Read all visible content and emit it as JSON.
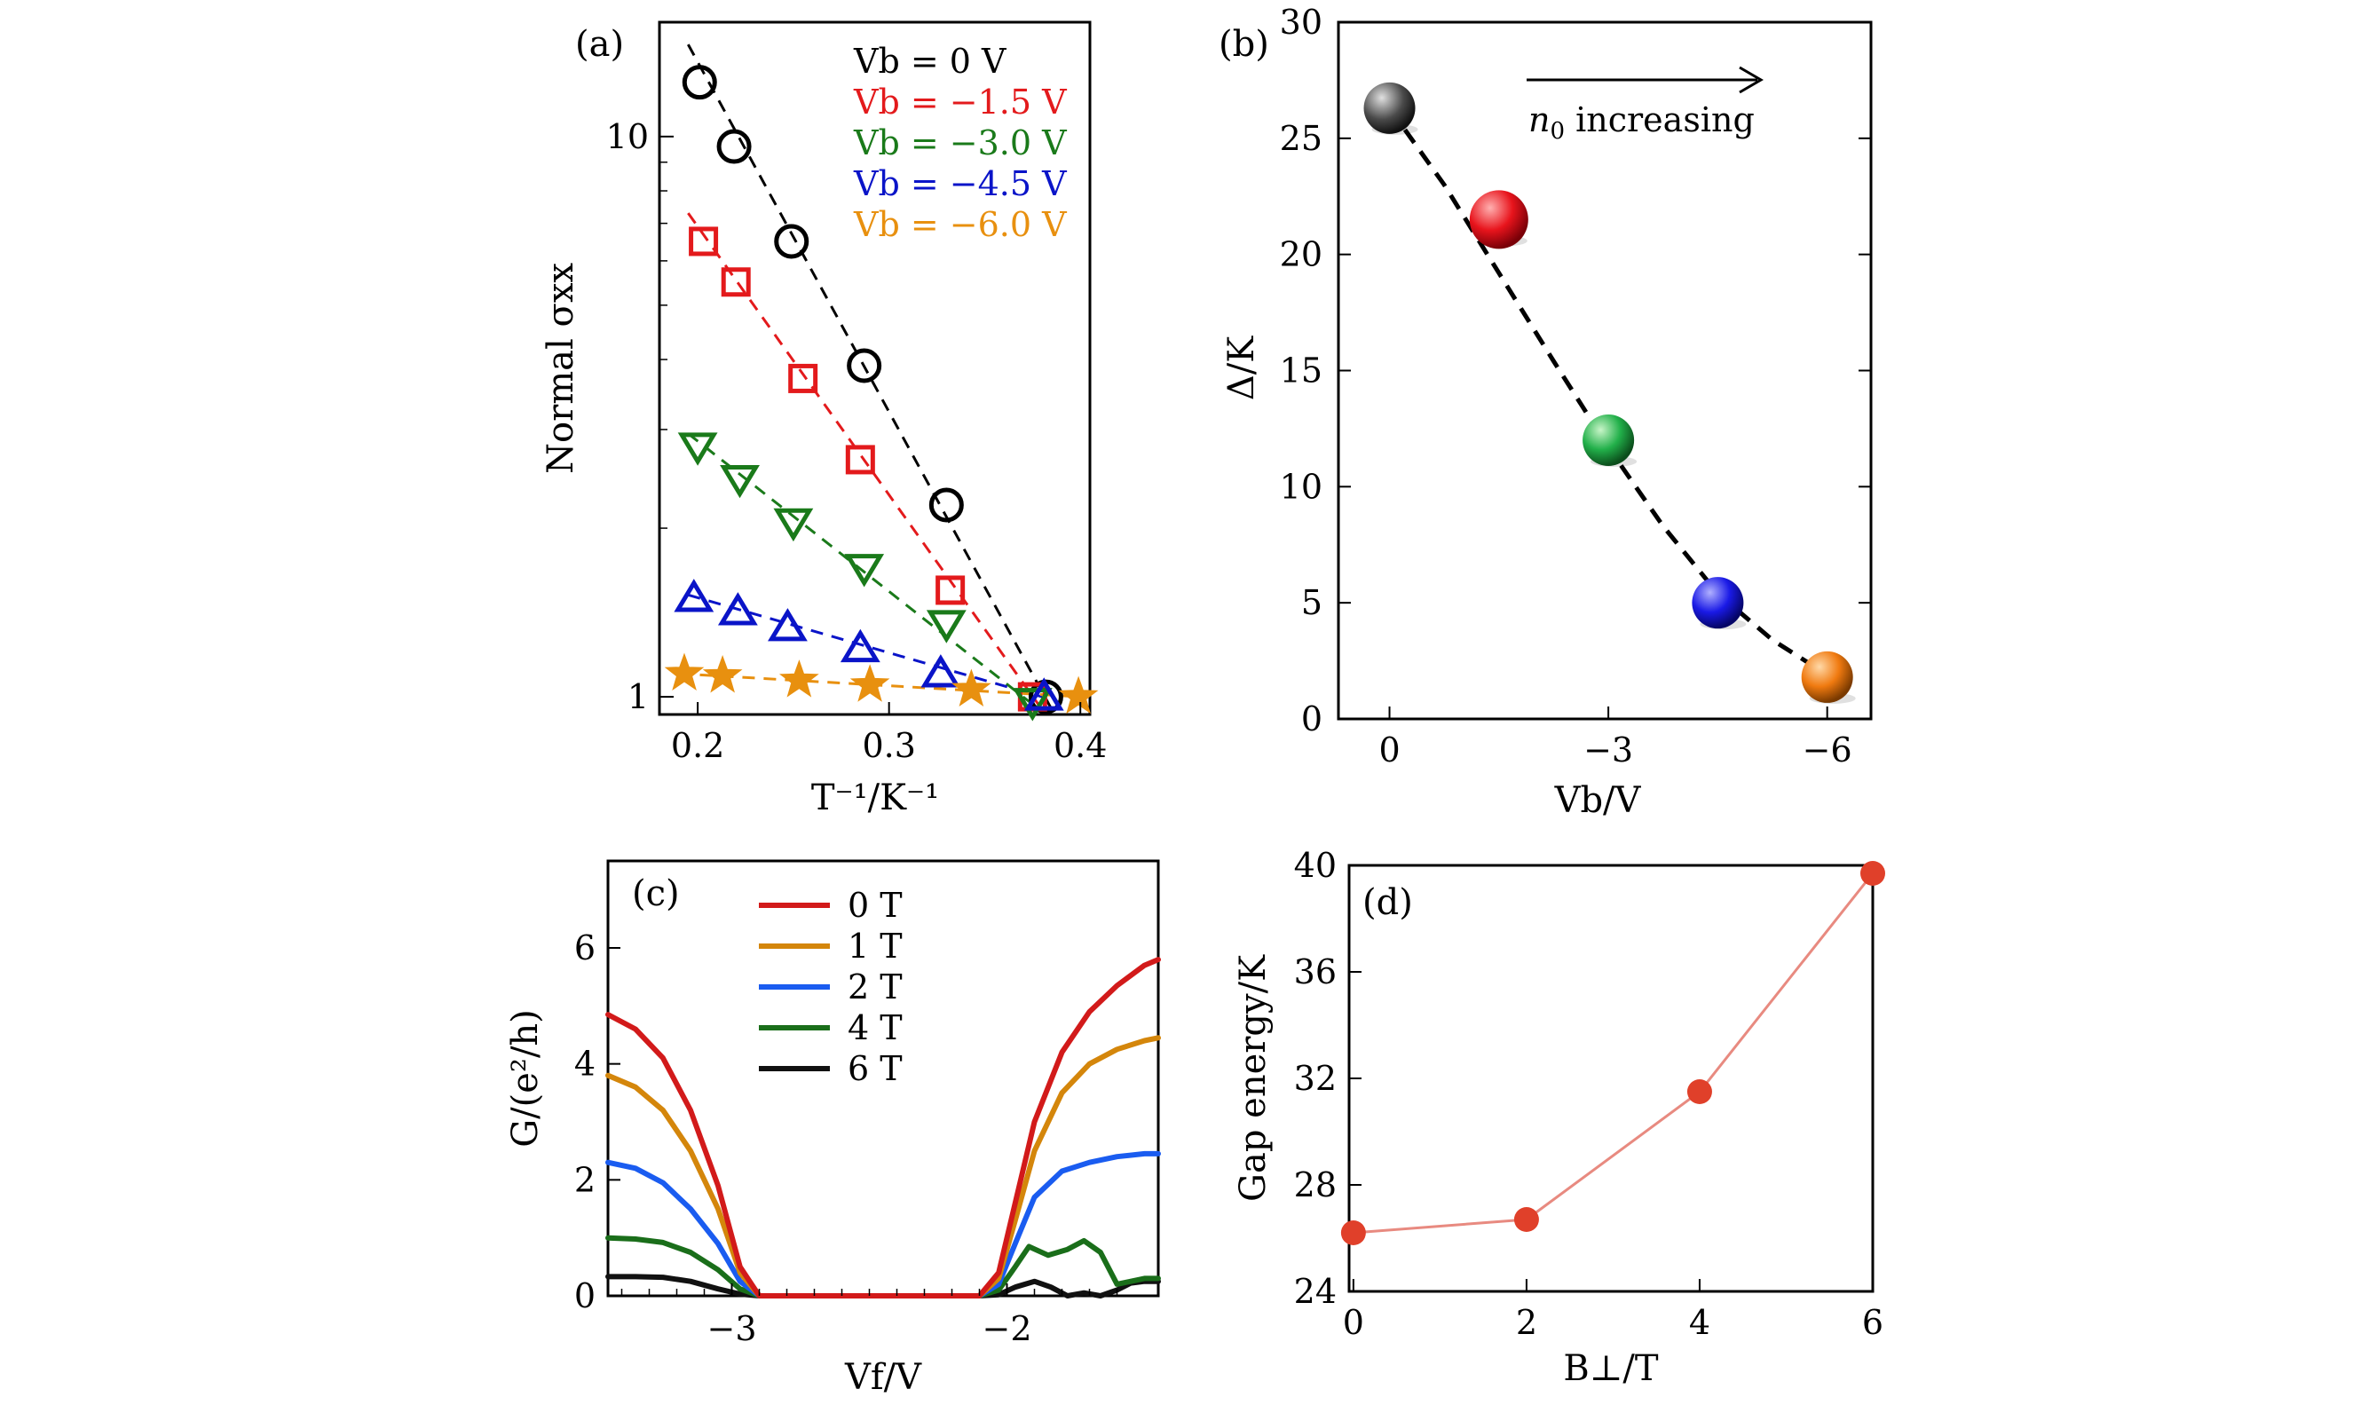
{
  "chart_data": [
    {
      "panel": "(a)",
      "type": "scatter",
      "xlabel": "T⁻¹/K⁻¹",
      "ylabel": "Normal σxx",
      "xscale": "linear",
      "yscale": "log",
      "xlim": [
        0.18,
        0.405
      ],
      "ylim": [
        0.93,
        16
      ],
      "xticks": [
        0.2,
        0.3,
        0.4
      ],
      "xticklabels": [
        "0.2",
        "0.3",
        "0.4"
      ],
      "yticks": [
        1,
        10
      ],
      "yticklabels": [
        "1",
        "10"
      ],
      "legend_position": "top-right",
      "fit_lines": "dashed",
      "series": [
        {
          "name": "Vb = 0 V",
          "color": "#000000",
          "marker": "circle",
          "x": [
            0.201,
            0.219,
            0.249,
            0.287,
            0.33,
            0.382
          ],
          "y": [
            12.5,
            9.6,
            6.5,
            3.9,
            2.2,
            1.0
          ],
          "fit": {
            "x": [
              0.195,
              0.385
            ],
            "y": [
              14.6,
              0.95
            ]
          }
        },
        {
          "name": "Vb = −1.5 V",
          "color": "#e31a1c",
          "marker": "square",
          "x": [
            0.203,
            0.22,
            0.255,
            0.285,
            0.332,
            0.375
          ],
          "y": [
            6.5,
            5.5,
            3.7,
            2.65,
            1.55,
            1.0
          ],
          "fit": {
            "x": [
              0.195,
              0.378
            ],
            "y": [
              7.3,
              0.97
            ]
          }
        },
        {
          "name": "Vb = −3.0 V",
          "color": "#1a7a1a",
          "marker": "triangle-down",
          "x": [
            0.2,
            0.222,
            0.25,
            0.287,
            0.33,
            0.375
          ],
          "y": [
            2.8,
            2.45,
            2.05,
            1.7,
            1.35,
            0.98
          ],
          "fit": {
            "x": [
              0.195,
              0.375
            ],
            "y": [
              2.95,
              0.97
            ]
          }
        },
        {
          "name": "Vb = −4.5 V",
          "color": "#0a14c8",
          "marker": "triangle-up",
          "x": [
            0.198,
            0.221,
            0.247,
            0.285,
            0.327,
            0.381
          ],
          "y": [
            1.5,
            1.42,
            1.33,
            1.22,
            1.1,
            1.0
          ],
          "fit": {
            "x": [
              0.195,
              0.38
            ],
            "y": [
              1.52,
              1.0
            ]
          }
        },
        {
          "name": "Vb = −6.0 V",
          "color": "#e8900f",
          "marker": "star",
          "x": [
            0.193,
            0.213,
            0.253,
            0.29,
            0.343,
            0.399
          ],
          "y": [
            1.1,
            1.09,
            1.07,
            1.05,
            1.03,
            1.0
          ],
          "fit": {
            "x": [
              0.19,
              0.4
            ],
            "y": [
              1.1,
              1.0
            ]
          }
        }
      ]
    },
    {
      "panel": "(b)",
      "type": "scatter",
      "xlabel": "Vb/V",
      "ylabel": "Δ/K",
      "xlim": [
        0.7,
        -6.6
      ],
      "ylim": [
        0,
        30
      ],
      "xticks": [
        0,
        -3,
        -6
      ],
      "xticklabels": [
        "0",
        "−3",
        "−6"
      ],
      "yticks": [
        0,
        5,
        10,
        15,
        20,
        25,
        30
      ],
      "yticklabels": [
        "0",
        "5",
        "10",
        "15",
        "20",
        "25",
        "30"
      ],
      "annotation": "n0 increasing",
      "fit_line": "dashed",
      "points": [
        {
          "x": 0,
          "y": 26.3,
          "color": "#555555"
        },
        {
          "x": -1.5,
          "y": 21.5,
          "color": "#e8141c"
        },
        {
          "x": -3.0,
          "y": 12.0,
          "color": "#22b04a"
        },
        {
          "x": -4.5,
          "y": 5.0,
          "color": "#1a1ae6"
        },
        {
          "x": -6.0,
          "y": 1.8,
          "color": "#f07a10"
        }
      ],
      "fit": {
        "x": [
          0,
          -0.75,
          -1.5,
          -2.25,
          -3.0,
          -3.75,
          -4.5,
          -5.25,
          -6.0
        ],
        "y": [
          26.3,
          23.0,
          19.2,
          15.4,
          11.7,
          8.3,
          5.4,
          3.4,
          1.9
        ]
      }
    },
    {
      "panel": "(c)",
      "type": "line",
      "xlabel": "Vf/V",
      "ylabel": "G/(e²/h)",
      "xlim": [
        -3.45,
        -1.45
      ],
      "ylim": [
        0,
        7.5
      ],
      "xticks": [
        -3,
        -2
      ],
      "xticklabels": [
        "−3",
        "−2"
      ],
      "yticks": [
        0,
        2,
        4,
        6
      ],
      "yticklabels": [
        "0",
        "2",
        "4",
        "6"
      ],
      "legend_position": "top-left",
      "series": [
        {
          "name": "0 T",
          "color": "#d21a1a",
          "x": [
            -3.45,
            -3.35,
            -3.25,
            -3.15,
            -3.05,
            -2.97,
            -2.9,
            -2.1,
            -2.03,
            -1.97,
            -1.9,
            -1.8,
            -1.7,
            -1.6,
            -1.5,
            -1.45
          ],
          "y": [
            4.85,
            4.6,
            4.1,
            3.2,
            1.9,
            0.5,
            0.0,
            0.0,
            0.4,
            1.6,
            3.0,
            4.2,
            4.9,
            5.35,
            5.7,
            5.8
          ]
        },
        {
          "name": "1 T",
          "color": "#d4860b",
          "x": [
            -3.45,
            -3.35,
            -3.25,
            -3.15,
            -3.05,
            -2.97,
            -2.9,
            -2.1,
            -2.03,
            -1.97,
            -1.9,
            -1.8,
            -1.7,
            -1.6,
            -1.5,
            -1.45
          ],
          "y": [
            3.8,
            3.6,
            3.2,
            2.5,
            1.5,
            0.4,
            0.0,
            0.0,
            0.3,
            1.3,
            2.5,
            3.5,
            4.0,
            4.25,
            4.4,
            4.45
          ]
        },
        {
          "name": "2 T",
          "color": "#1a5cf0",
          "x": [
            -3.45,
            -3.35,
            -3.25,
            -3.15,
            -3.05,
            -2.97,
            -2.9,
            -2.1,
            -2.03,
            -1.97,
            -1.9,
            -1.8,
            -1.7,
            -1.6,
            -1.5,
            -1.45
          ],
          "y": [
            2.3,
            2.2,
            1.95,
            1.5,
            0.9,
            0.25,
            0.0,
            0.0,
            0.2,
            0.9,
            1.7,
            2.15,
            2.3,
            2.4,
            2.45,
            2.45
          ]
        },
        {
          "name": "4 T",
          "color": "#1a6e1a",
          "x": [
            -3.45,
            -3.35,
            -3.25,
            -3.15,
            -3.05,
            -2.97,
            -2.9,
            -2.1,
            -2.03,
            -1.97,
            -1.92,
            -1.85,
            -1.78,
            -1.72,
            -1.66,
            -1.6,
            -1.55,
            -1.5,
            -1.45
          ],
          "y": [
            1.0,
            0.98,
            0.92,
            0.75,
            0.45,
            0.12,
            0.0,
            0.0,
            0.1,
            0.5,
            0.85,
            0.7,
            0.8,
            0.95,
            0.75,
            0.2,
            0.25,
            0.3,
            0.3
          ]
        },
        {
          "name": "6 T",
          "color": "#111111",
          "x": [
            -3.45,
            -3.35,
            -3.25,
            -3.15,
            -3.05,
            -2.97,
            -2.9,
            -2.1,
            -2.03,
            -1.97,
            -1.9,
            -1.84,
            -1.78,
            -1.72,
            -1.66,
            -1.6,
            -1.55,
            -1.5,
            -1.45
          ],
          "y": [
            0.33,
            0.33,
            0.32,
            0.25,
            0.12,
            0.03,
            0.0,
            0.0,
            0.02,
            0.15,
            0.25,
            0.15,
            0.0,
            0.05,
            0.0,
            0.1,
            0.22,
            0.25,
            0.25
          ]
        }
      ]
    },
    {
      "panel": "(d)",
      "type": "line",
      "xlabel": "B⊥/T",
      "ylabel": "Gap energy/K",
      "xlim": [
        -0.05,
        6
      ],
      "ylim": [
        24,
        40
      ],
      "xticks": [
        0,
        2,
        4,
        6
      ],
      "xticklabels": [
        "0",
        "2",
        "4",
        "6"
      ],
      "yticks": [
        24,
        28,
        32,
        36,
        40
      ],
      "yticklabels": [
        "24",
        "28",
        "32",
        "36",
        "40"
      ],
      "series": [
        {
          "name": "",
          "color": "#e0402a",
          "x": [
            0,
            2,
            4,
            6
          ],
          "y": [
            26.2,
            26.7,
            31.5,
            39.7
          ]
        }
      ]
    }
  ]
}
